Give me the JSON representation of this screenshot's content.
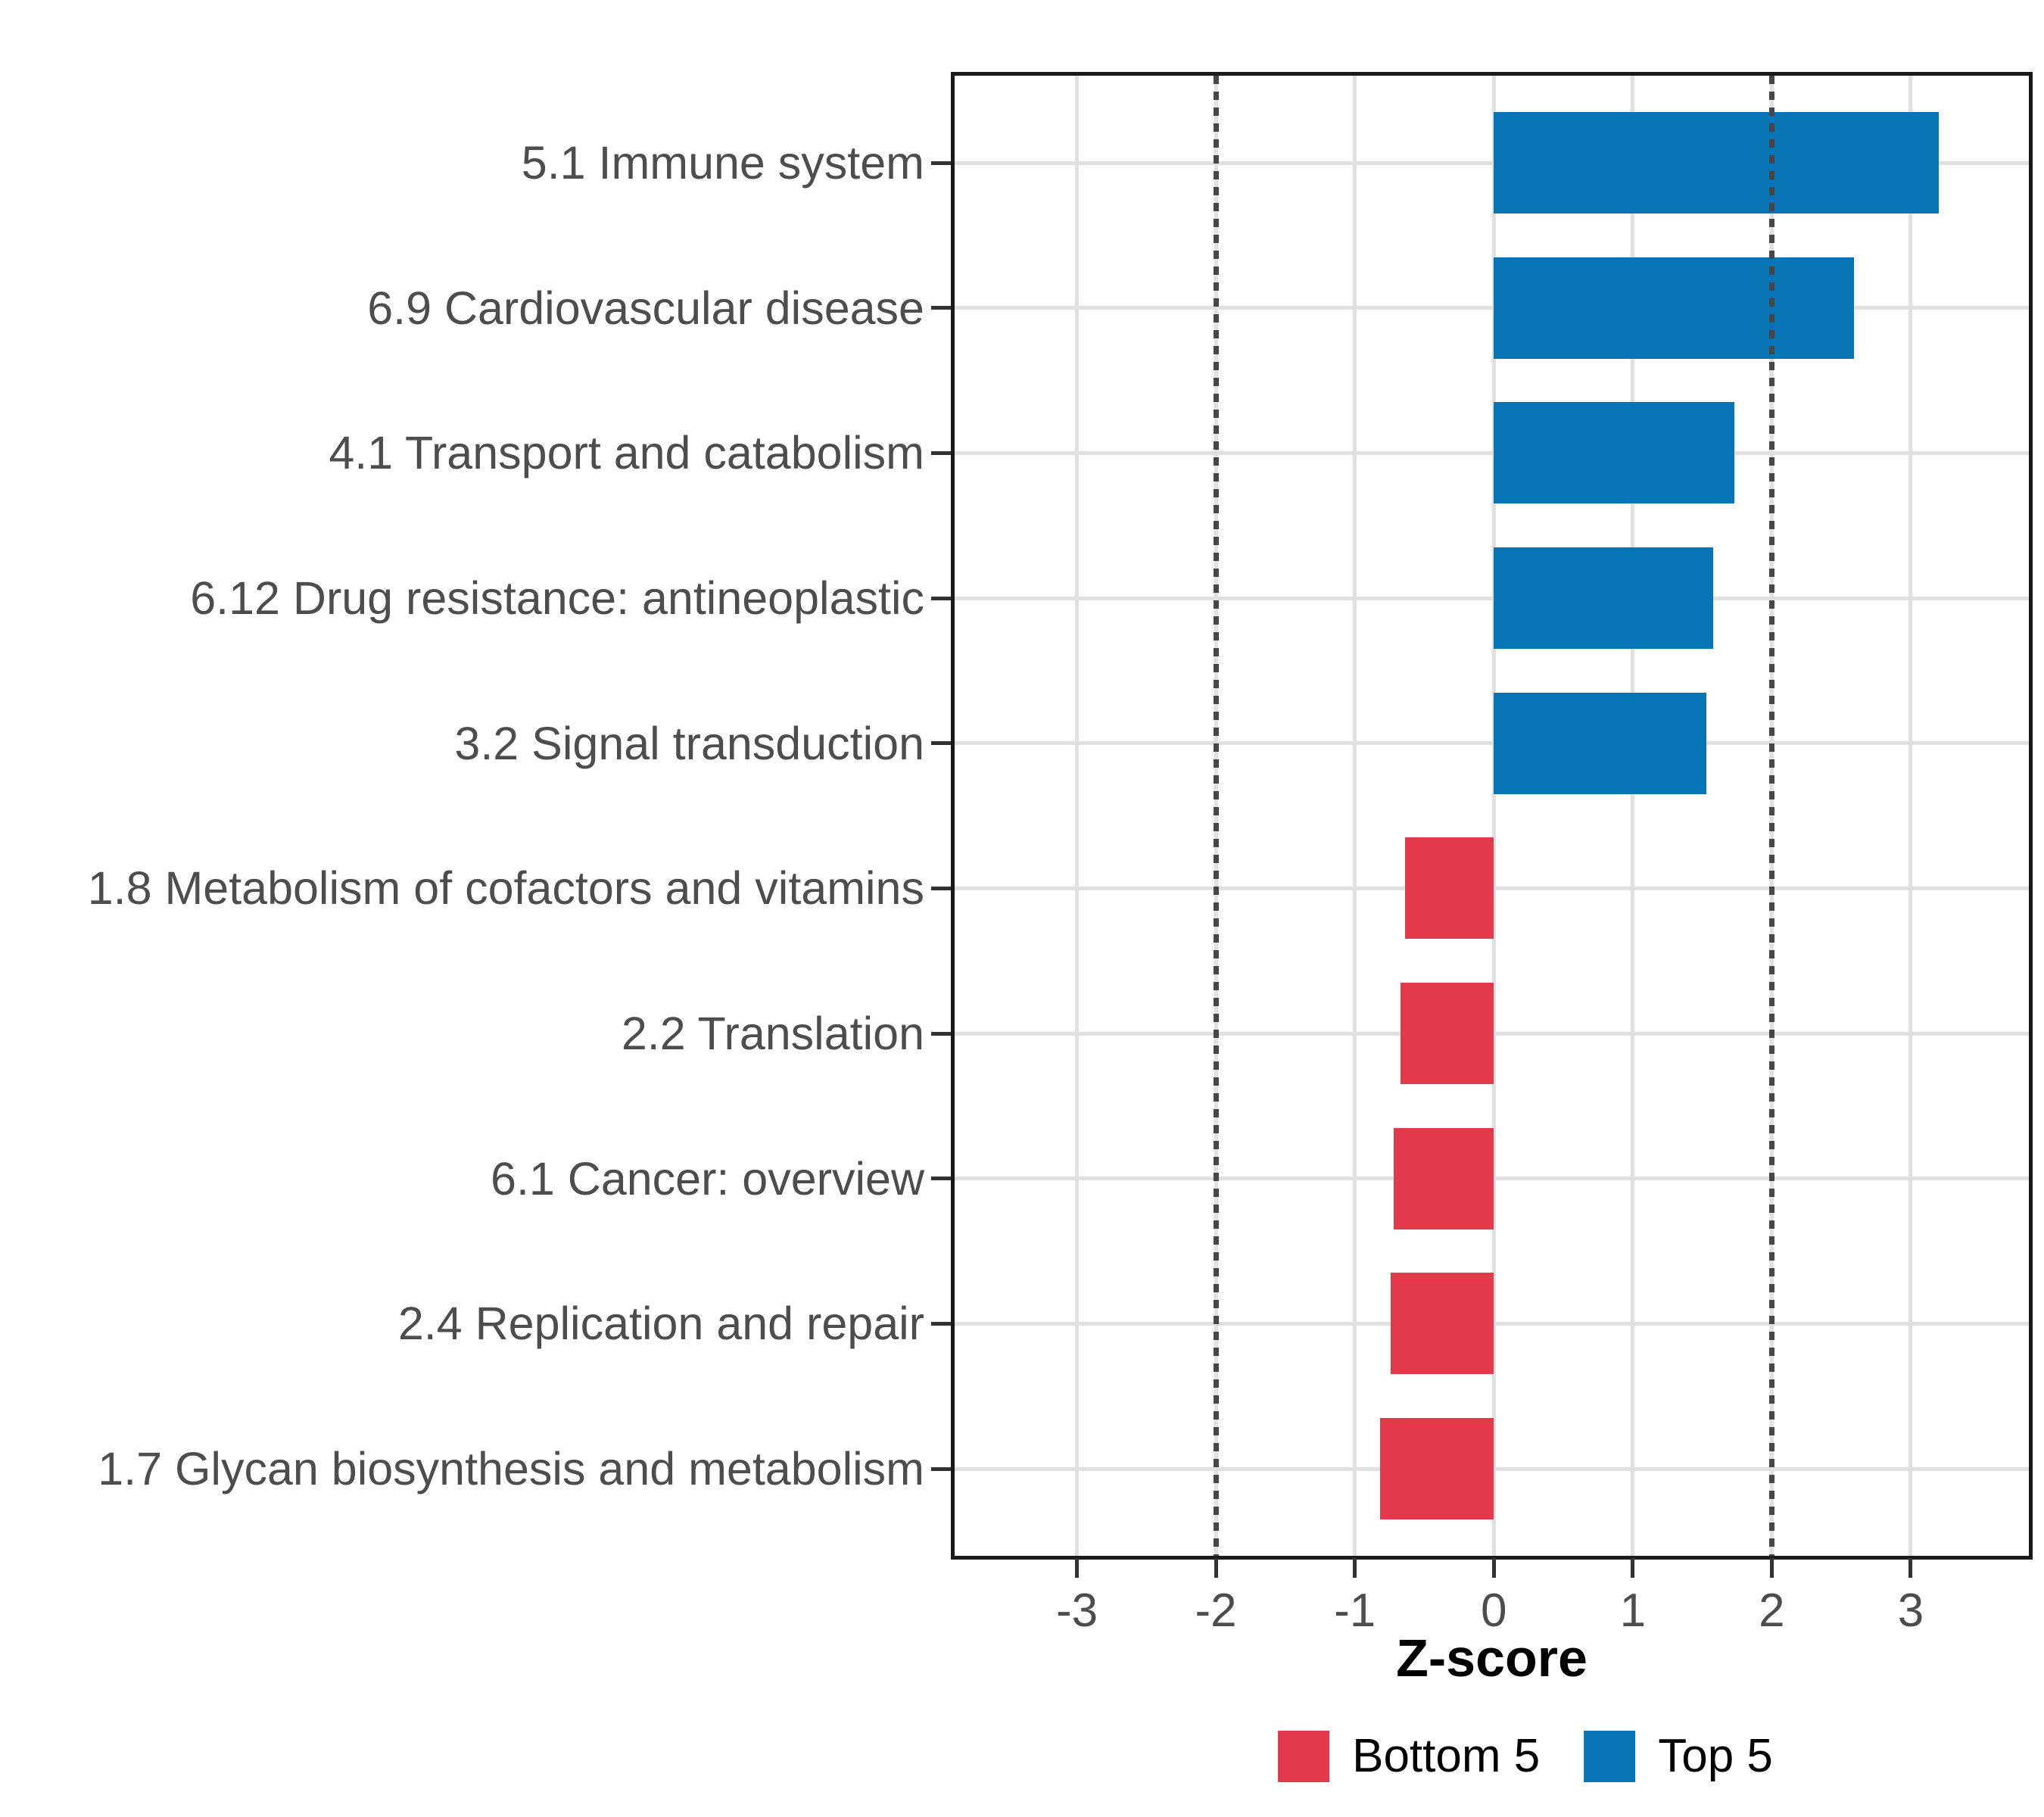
{
  "chart_data": {
    "type": "bar",
    "orientation": "horizontal",
    "title": "",
    "xlabel": "Z-score",
    "ylabel": "",
    "categories": [
      "5.1 Immune system",
      "6.9 Cardiovascular disease",
      "4.1 Transport and catabolism",
      "6.12 Drug resistance: antineoplastic",
      "3.2 Signal transduction",
      "1.8 Metabolism of cofactors and vitamins",
      "2.2 Translation",
      "6.1 Cancer: overview",
      "2.4 Replication and repair",
      "1.7 Glycan biosynthesis and metabolism"
    ],
    "values": [
      3.2,
      2.59,
      1.73,
      1.58,
      1.53,
      -0.64,
      -0.67,
      -0.72,
      -0.74,
      -0.82
    ],
    "groups": [
      "Top 5",
      "Top 5",
      "Top 5",
      "Top 5",
      "Top 5",
      "Bottom 5",
      "Bottom 5",
      "Bottom 5",
      "Bottom 5",
      "Bottom 5"
    ],
    "x_tick_labels": [
      "-3",
      "-2",
      "-1",
      "0",
      "1",
      "2",
      "3"
    ],
    "x_tick_values": [
      -3,
      -2,
      -1,
      0,
      1,
      2,
      3
    ],
    "xlim": [
      -3.88,
      3.85
    ],
    "reference_lines": [
      -2,
      2
    ],
    "grid": "major",
    "legend_position": "bottom",
    "legend": [
      {
        "label": "Bottom 5",
        "color": "#E4394B"
      },
      {
        "label": "Top 5",
        "color": "#0674B5"
      }
    ],
    "colors": {
      "bar_positive": "#0674B5",
      "bar_negative": "#E4394B",
      "gridline": "#E0E0E0",
      "panel_border": "#1A1A1A",
      "reference_line": "#474747",
      "axis_text": "#4D4D4D",
      "axis_title": "#000000",
      "background": "#FFFFFF"
    }
  }
}
